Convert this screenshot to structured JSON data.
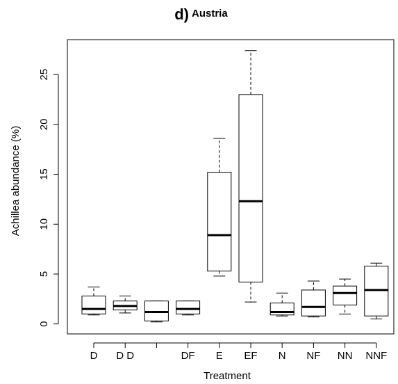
{
  "chart_data": {
    "type": "boxplot",
    "title_prefix": "d)",
    "title": "Austria",
    "xlabel": "Treatment",
    "ylabel": "Achillea abundance (%)",
    "ylim": [
      -1,
      28.5
    ],
    "yticks": [
      0,
      5,
      10,
      15,
      20,
      25
    ],
    "grid": false,
    "categories": [
      "D",
      "D D",
      "",
      "DF",
      "E",
      "EF",
      "N",
      "NF",
      "NN",
      "NNF"
    ],
    "boxes": [
      {
        "min": 0.9,
        "q1": 1.0,
        "median": 1.5,
        "q3": 2.8,
        "max": 3.7
      },
      {
        "min": 1.1,
        "q1": 1.4,
        "median": 1.8,
        "q3": 2.3,
        "max": 2.8
      },
      {
        "min": 0.2,
        "q1": 0.3,
        "median": 1.2,
        "q3": 2.3,
        "max": 2.3
      },
      {
        "min": 0.9,
        "q1": 1.0,
        "median": 1.5,
        "q3": 2.3,
        "max": 2.3
      },
      {
        "min": 4.8,
        "q1": 5.3,
        "median": 8.9,
        "q3": 15.2,
        "max": 18.6
      },
      {
        "min": 2.2,
        "q1": 4.2,
        "median": 12.3,
        "q3": 23.0,
        "max": 27.4
      },
      {
        "min": 0.8,
        "q1": 0.9,
        "median": 1.2,
        "q3": 2.1,
        "max": 3.1
      },
      {
        "min": 0.7,
        "q1": 0.8,
        "median": 1.7,
        "q3": 3.4,
        "max": 4.3
      },
      {
        "min": 1.0,
        "q1": 1.9,
        "median": 3.1,
        "q3": 3.8,
        "max": 4.5
      },
      {
        "min": 0.5,
        "q1": 0.8,
        "median": 3.4,
        "q3": 5.8,
        "max": 6.1
      }
    ]
  }
}
